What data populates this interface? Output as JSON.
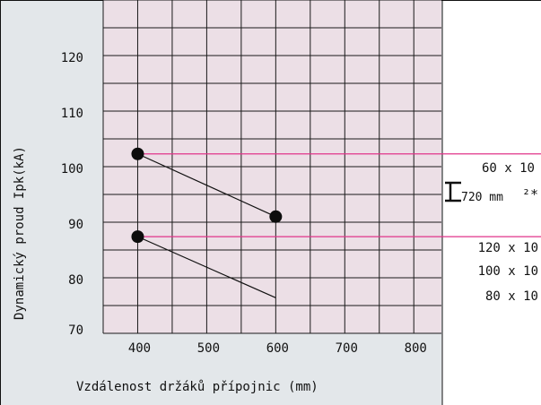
{
  "chart_data": {
    "type": "line",
    "title": "",
    "xlabel": "Vzdálenost držáků přípojnic  (mm)",
    "ylabel": "Dynamický proud  Ipk(kA)",
    "xlim": [
      350,
      840
    ],
    "ylim": [
      70,
      130
    ],
    "x_ticks": [
      400,
      500,
      600,
      700,
      800
    ],
    "y_ticks": [
      70,
      80,
      90,
      100,
      110,
      120
    ],
    "grid": true,
    "series": [
      {
        "values": [
          [
            400,
            102.3
          ],
          [
            600,
            91
          ]
        ],
        "end_marker": true
      },
      {
        "values": [
          [
            400,
            87.4
          ],
          [
            600,
            76.4
          ]
        ],
        "end_marker": false
      }
    ],
    "reference_lines": [
      102.3,
      87.4
    ],
    "annotations": {
      "top_label": "60 x 10",
      "spacing_label": "720 mm",
      "spacing_note": "²*",
      "bottom_labels": [
        "120 x 10",
        "100 x 10",
        "80 x 10"
      ]
    }
  },
  "colors": {
    "plot_background": "#ecdfe6",
    "outer_background": "#e3e7ea",
    "grid": "#1a1a1a",
    "line": "#111111",
    "marker": "#0d0d0d",
    "reference": "#e0348a"
  }
}
